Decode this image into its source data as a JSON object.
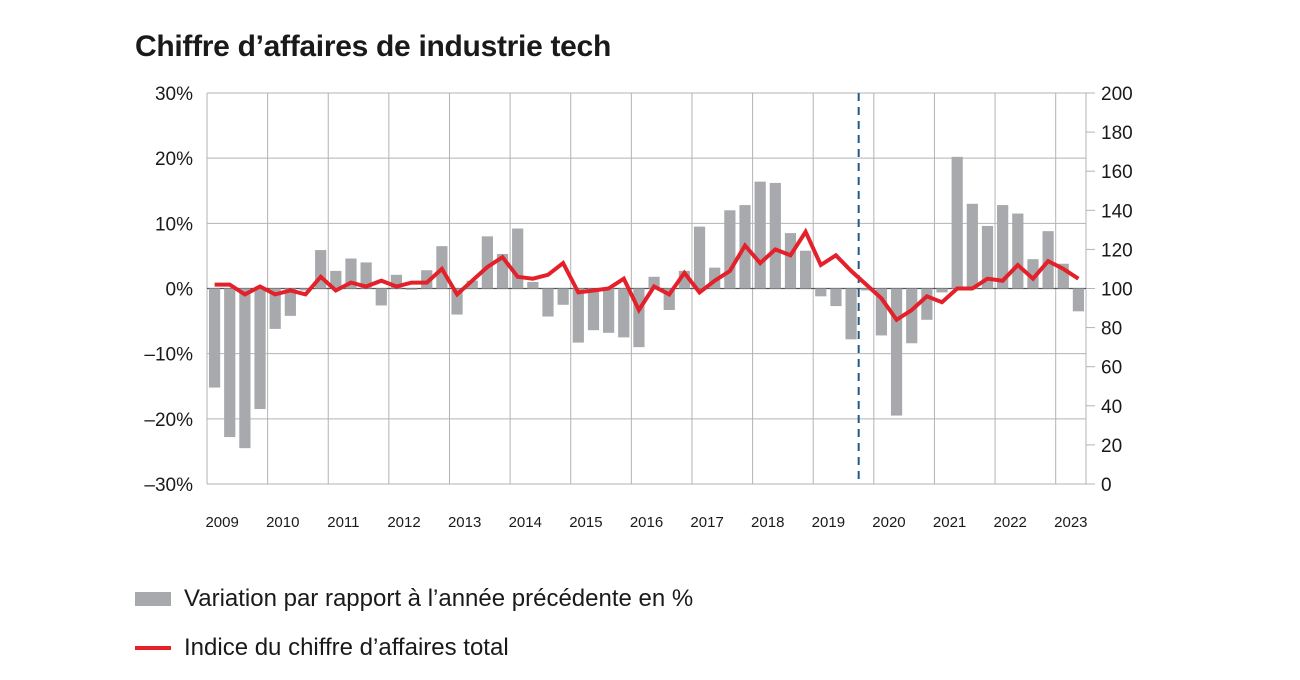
{
  "colors": {
    "bar": "#a7a9ac",
    "line": "#e4202a",
    "grid": "#b3b3b3",
    "break_line": "#1f5a8a"
  },
  "legend": {
    "bar_label": "Variation par rapport à l’année précédente en %",
    "line_label": "Indice du chiffre d’affaires total"
  },
  "chart_data": {
    "type": "bar",
    "title": "Chiffre d’affaires de industrie tech",
    "left_axis": {
      "range": [
        -30,
        30
      ],
      "ticks": [
        30,
        20,
        10,
        0,
        -10,
        -20,
        -30
      ],
      "tick_labels": [
        "30%",
        "20%",
        "10%",
        "0%",
        "–10%",
        "–20%",
        "–30%"
      ]
    },
    "right_axis": {
      "range": [
        0,
        200
      ],
      "ticks": [
        200,
        180,
        160,
        140,
        120,
        100,
        80,
        60,
        40,
        20,
        0
      ],
      "tick_labels": [
        "200",
        "180",
        "160",
        "140",
        "120",
        "100",
        "80",
        "60",
        "40",
        "20",
        "0"
      ]
    },
    "years": [
      "2009",
      "2010",
      "2011",
      "2012",
      "2013",
      "2014",
      "2015",
      "2016",
      "2017",
      "2018",
      "2019",
      "2020",
      "2021",
      "2022",
      "2023"
    ],
    "grid": true,
    "structural_break_after": "2019 Q3",
    "series": [
      {
        "name": "Variation par rapport à l’année précédente en %",
        "type": "bar",
        "axis": "left",
        "values": [
          -15.2,
          -22.8,
          -24.5,
          -18.5,
          -6.2,
          -4.2,
          -0.3,
          5.9,
          2.7,
          4.6,
          4.0,
          -2.6,
          2.1,
          -0.2,
          2.8,
          6.5,
          -4.0,
          1.2,
          8.0,
          5.3,
          9.2,
          1.0,
          -4.3,
          -2.5,
          -8.3,
          -6.4,
          -6.8,
          -7.5,
          -9.0,
          1.8,
          -3.3,
          2.7,
          9.5,
          3.2,
          12.0,
          12.8,
          16.4,
          16.2,
          8.5,
          5.8,
          -1.2,
          -2.7,
          -7.8,
          -0.3,
          -7.2,
          -19.5,
          -8.4,
          -4.8,
          -0.6,
          20.2,
          13.0,
          9.6,
          12.8,
          11.5,
          4.5,
          8.8,
          3.8,
          -3.5
        ]
      },
      {
        "name": "Indice du chiffre d’affaires total",
        "type": "line",
        "axis": "right",
        "values": [
          102,
          102,
          97,
          101,
          97,
          99,
          97,
          106,
          99,
          103,
          101,
          104,
          101,
          103,
          103,
          110,
          97,
          104,
          111,
          116,
          106,
          105,
          107,
          113,
          98,
          99,
          100,
          105,
          89,
          101,
          97,
          108,
          98,
          104,
          109,
          122,
          113,
          120,
          117,
          129,
          112,
          117,
          109,
          102,
          95,
          84,
          89,
          96,
          93,
          100,
          100,
          105,
          104,
          112,
          105,
          114,
          110,
          105
        ]
      }
    ]
  }
}
